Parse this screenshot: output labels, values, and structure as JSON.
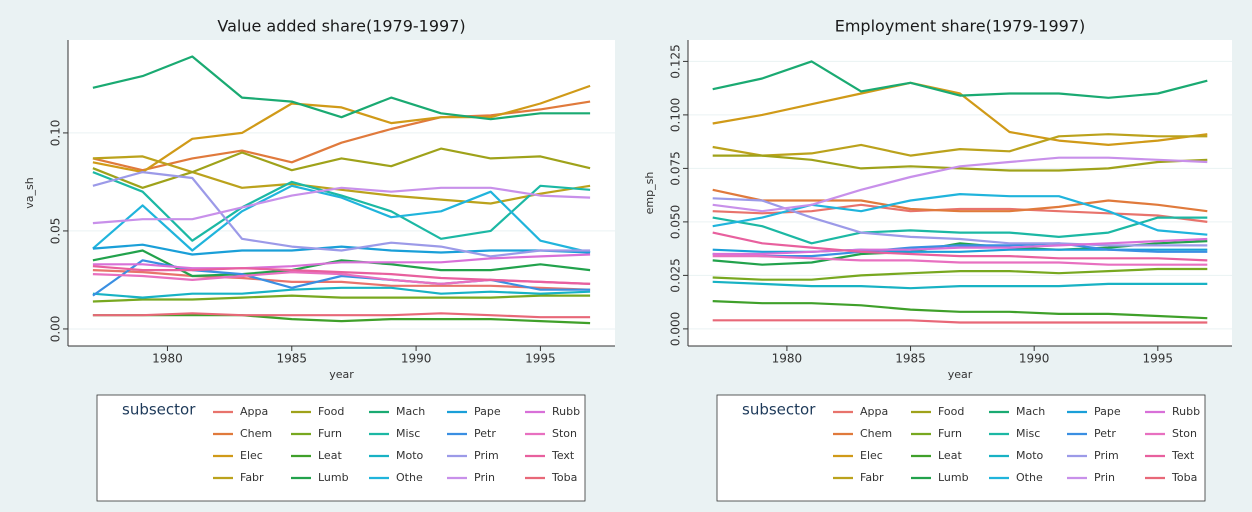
{
  "chart_data": [
    {
      "type": "line",
      "title": "Value added share(1979-1997)",
      "x_label": "year",
      "y_label": "va_sh",
      "legend_title": "subsector",
      "x": [
        1977,
        1979,
        1981,
        1983,
        1985,
        1987,
        1989,
        1991,
        1993,
        1995,
        1997
      ],
      "xlim": [
        1976,
        1998
      ],
      "xticks": [
        1980,
        1985,
        1990,
        1995
      ],
      "ylim": [
        -0.0087,
        0.1474
      ],
      "yticks": [
        {
          "value": 0,
          "label": "0.00"
        },
        {
          "value": 0.05,
          "label": "0.05"
        },
        {
          "value": 0.1,
          "label": "0.10"
        }
      ],
      "grid": true,
      "series": [
        {
          "name": "Appa",
          "color": "#e8736c",
          "values": [
            0.03,
            0.029,
            0.027,
            0.026,
            0.024,
            0.024,
            0.022,
            0.022,
            0.022,
            0.021,
            0.02
          ]
        },
        {
          "name": "Chem",
          "color": "#e07a3c",
          "values": [
            0.087,
            0.081,
            0.087,
            0.091,
            0.085,
            0.095,
            0.102,
            0.108,
            0.109,
            0.112,
            0.116
          ]
        },
        {
          "name": "Elec",
          "color": "#d09a18",
          "values": [
            0.085,
            0.08,
            0.097,
            0.1,
            0.115,
            0.113,
            0.105,
            0.108,
            0.108,
            0.115,
            0.124
          ]
        },
        {
          "name": "Fabr",
          "color": "#bba21c",
          "values": [
            0.087,
            0.088,
            0.08,
            0.072,
            0.074,
            0.071,
            0.068,
            0.066,
            0.064,
            0.069,
            0.073
          ]
        },
        {
          "name": "Food",
          "color": "#9fa21a",
          "values": [
            0.082,
            0.072,
            0.08,
            0.09,
            0.081,
            0.087,
            0.083,
            0.092,
            0.087,
            0.088,
            0.082
          ]
        },
        {
          "name": "Furn",
          "color": "#78a820",
          "values": [
            0.014,
            0.015,
            0.015,
            0.016,
            0.017,
            0.016,
            0.016,
            0.016,
            0.016,
            0.017,
            0.017
          ]
        },
        {
          "name": "Leat",
          "color": "#3fa02a",
          "values": [
            0.007,
            0.007,
            0.007,
            0.007,
            0.005,
            0.004,
            0.005,
            0.005,
            0.005,
            0.004,
            0.003
          ]
        },
        {
          "name": "Lumb",
          "color": "#22a24c",
          "values": [
            0.035,
            0.04,
            0.027,
            0.028,
            0.03,
            0.035,
            0.033,
            0.03,
            0.03,
            0.033,
            0.03
          ]
        },
        {
          "name": "Mach",
          "color": "#1aaa72",
          "values": [
            0.123,
            0.129,
            0.139,
            0.118,
            0.116,
            0.108,
            0.118,
            0.11,
            0.107,
            0.11,
            0.11
          ]
        },
        {
          "name": "Misc",
          "color": "#1cb8a4",
          "values": [
            0.08,
            0.07,
            0.045,
            0.062,
            0.075,
            0.068,
            0.06,
            0.046,
            0.05,
            0.073,
            0.071
          ]
        },
        {
          "name": "Moto",
          "color": "#18b2c4",
          "values": [
            0.018,
            0.016,
            0.018,
            0.018,
            0.02,
            0.021,
            0.021,
            0.018,
            0.019,
            0.018,
            0.019
          ]
        },
        {
          "name": "Othe",
          "color": "#20b4dc",
          "values": [
            0.041,
            0.063,
            0.04,
            0.06,
            0.073,
            0.067,
            0.057,
            0.06,
            0.07,
            0.045,
            0.039
          ]
        },
        {
          "name": "Pape",
          "color": "#1a9fd8",
          "values": [
            0.041,
            0.043,
            0.038,
            0.04,
            0.04,
            0.042,
            0.04,
            0.039,
            0.04,
            0.04,
            0.039
          ]
        },
        {
          "name": "Petr",
          "color": "#3a8fe2",
          "values": [
            0.017,
            0.035,
            0.03,
            0.028,
            0.021,
            0.027,
            0.025,
            0.023,
            0.025,
            0.02,
            0.02
          ]
        },
        {
          "name": "Prim",
          "color": "#9c9ae8",
          "values": [
            0.073,
            0.08,
            0.077,
            0.046,
            0.042,
            0.04,
            0.044,
            0.042,
            0.037,
            0.04,
            0.04
          ]
        },
        {
          "name": "Prin",
          "color": "#c890ea",
          "values": [
            0.054,
            0.056,
            0.056,
            0.062,
            0.068,
            0.072,
            0.07,
            0.072,
            0.072,
            0.068,
            0.067
          ]
        },
        {
          "name": "Rubb",
          "color": "#d870d8",
          "values": [
            0.033,
            0.033,
            0.031,
            0.031,
            0.032,
            0.034,
            0.034,
            0.034,
            0.036,
            0.037,
            0.038
          ]
        },
        {
          "name": "Ston",
          "color": "#e870c0",
          "values": [
            0.028,
            0.027,
            0.025,
            0.027,
            0.029,
            0.028,
            0.025,
            0.023,
            0.025,
            0.024,
            0.023
          ]
        },
        {
          "name": "Text",
          "color": "#e8609e",
          "values": [
            0.032,
            0.03,
            0.03,
            0.031,
            0.03,
            0.029,
            0.028,
            0.026,
            0.025,
            0.024,
            0.023
          ]
        },
        {
          "name": "Toba",
          "color": "#e86878",
          "values": [
            0.007,
            0.007,
            0.008,
            0.007,
            0.007,
            0.007,
            0.007,
            0.008,
            0.007,
            0.006,
            0.006
          ]
        }
      ]
    },
    {
      "type": "line",
      "title": "Employment share(1979-1997)",
      "x_label": "year",
      "y_label": "emp_sh",
      "legend_title": "subsector",
      "x": [
        1977,
        1979,
        1981,
        1983,
        1985,
        1987,
        1989,
        1991,
        1993,
        1995,
        1997
      ],
      "xlim": [
        1976,
        1998
      ],
      "xticks": [
        1980,
        1985,
        1990,
        1995
      ],
      "ylim": [
        -0.008,
        0.135
      ],
      "yticks": [
        {
          "value": 0,
          "label": "0.000"
        },
        {
          "value": 0.025,
          "label": "0.025"
        },
        {
          "value": 0.05,
          "label": "0.050"
        },
        {
          "value": 0.075,
          "label": "0.075"
        },
        {
          "value": 0.1,
          "label": "0.100"
        },
        {
          "value": 0.125,
          "label": "0.125"
        }
      ],
      "grid": true,
      "series": [
        {
          "name": "Appa",
          "color": "#e8736c",
          "values": [
            0.055,
            0.054,
            0.055,
            0.058,
            0.055,
            0.056,
            0.056,
            0.055,
            0.054,
            0.053,
            0.05
          ]
        },
        {
          "name": "Chem",
          "color": "#e07a3c",
          "values": [
            0.065,
            0.06,
            0.06,
            0.06,
            0.056,
            0.055,
            0.055,
            0.057,
            0.06,
            0.058,
            0.055
          ]
        },
        {
          "name": "Elec",
          "color": "#d09a18",
          "values": [
            0.096,
            0.1,
            0.105,
            0.11,
            0.115,
            0.11,
            0.092,
            0.088,
            0.086,
            0.088,
            0.091
          ]
        },
        {
          "name": "Fabr",
          "color": "#bba21c",
          "values": [
            0.085,
            0.081,
            0.082,
            0.086,
            0.081,
            0.084,
            0.083,
            0.09,
            0.091,
            0.09,
            0.09
          ]
        },
        {
          "name": "Food",
          "color": "#9fa21a",
          "values": [
            0.081,
            0.081,
            0.079,
            0.075,
            0.076,
            0.075,
            0.074,
            0.074,
            0.075,
            0.078,
            0.079
          ]
        },
        {
          "name": "Furn",
          "color": "#78a820",
          "values": [
            0.024,
            0.023,
            0.023,
            0.025,
            0.026,
            0.027,
            0.027,
            0.026,
            0.027,
            0.028,
            0.028
          ]
        },
        {
          "name": "Leat",
          "color": "#3fa02a",
          "values": [
            0.013,
            0.012,
            0.012,
            0.011,
            0.009,
            0.008,
            0.008,
            0.007,
            0.007,
            0.006,
            0.005
          ]
        },
        {
          "name": "Lumb",
          "color": "#22a24c",
          "values": [
            0.032,
            0.03,
            0.031,
            0.035,
            0.036,
            0.04,
            0.038,
            0.037,
            0.038,
            0.04,
            0.041
          ]
        },
        {
          "name": "Mach",
          "color": "#1aaa72",
          "values": [
            0.112,
            0.117,
            0.125,
            0.111,
            0.115,
            0.109,
            0.11,
            0.11,
            0.108,
            0.11,
            0.116
          ]
        },
        {
          "name": "Misc",
          "color": "#1cb8a4",
          "values": [
            0.052,
            0.048,
            0.04,
            0.045,
            0.046,
            0.045,
            0.045,
            0.043,
            0.045,
            0.052,
            0.052
          ]
        },
        {
          "name": "Moto",
          "color": "#18b2c4",
          "values": [
            0.022,
            0.021,
            0.02,
            0.02,
            0.019,
            0.02,
            0.02,
            0.02,
            0.021,
            0.021,
            0.021
          ]
        },
        {
          "name": "Othe",
          "color": "#20b4dc",
          "values": [
            0.048,
            0.052,
            0.058,
            0.055,
            0.06,
            0.063,
            0.062,
            0.062,
            0.055,
            0.046,
            0.044
          ]
        },
        {
          "name": "Pape",
          "color": "#1a9fd8",
          "values": [
            0.037,
            0.036,
            0.036,
            0.037,
            0.036,
            0.036,
            0.037,
            0.037,
            0.037,
            0.037,
            0.037
          ]
        },
        {
          "name": "Petr",
          "color": "#3a8fe2",
          "values": [
            0.035,
            0.034,
            0.034,
            0.036,
            0.038,
            0.039,
            0.039,
            0.04,
            0.037,
            0.036,
            0.036
          ]
        },
        {
          "name": "Prim",
          "color": "#9c9ae8",
          "values": [
            0.061,
            0.06,
            0.052,
            0.045,
            0.043,
            0.042,
            0.04,
            0.04,
            0.039,
            0.039,
            0.039
          ]
        },
        {
          "name": "Prin",
          "color": "#c890ea",
          "values": [
            0.058,
            0.055,
            0.058,
            0.065,
            0.071,
            0.076,
            0.078,
            0.08,
            0.08,
            0.079,
            0.078
          ]
        },
        {
          "name": "Rubb",
          "color": "#d870d8",
          "values": [
            0.035,
            0.035,
            0.036,
            0.037,
            0.037,
            0.038,
            0.038,
            0.039,
            0.04,
            0.041,
            0.042
          ]
        },
        {
          "name": "Ston",
          "color": "#e870c0",
          "values": [
            0.034,
            0.034,
            0.033,
            0.032,
            0.032,
            0.031,
            0.031,
            0.031,
            0.03,
            0.03,
            0.03
          ]
        },
        {
          "name": "Text",
          "color": "#e8609e",
          "values": [
            0.045,
            0.04,
            0.038,
            0.036,
            0.035,
            0.034,
            0.034,
            0.033,
            0.033,
            0.033,
            0.032
          ]
        },
        {
          "name": "Toba",
          "color": "#e86878",
          "values": [
            0.004,
            0.004,
            0.004,
            0.004,
            0.004,
            0.003,
            0.003,
            0.003,
            0.003,
            0.003,
            0.003
          ]
        }
      ]
    }
  ]
}
